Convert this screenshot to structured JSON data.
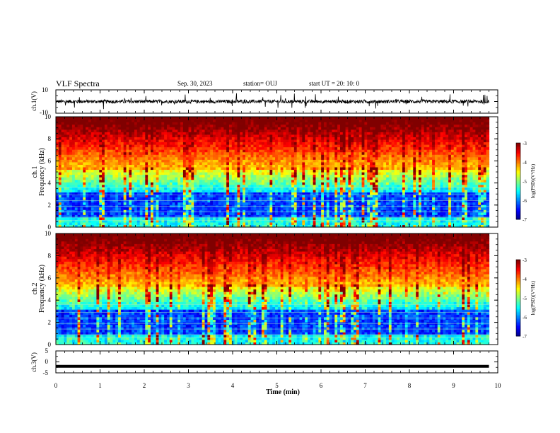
{
  "header": {
    "title": "VLF Spectra",
    "date": "Sep. 30, 2023",
    "station": "station= OUJ",
    "start": "start UT =   20: 10: 0"
  },
  "colors": {
    "spectrum_low": "#000080",
    "spectrum_mid": "#00ff00",
    "spectrum_high": "#ff0000",
    "trace": "#000000"
  },
  "chart_data": [
    {
      "type": "line",
      "panel": "waveform-ch1",
      "ylabel": "ch.1(V)",
      "ylim": [
        -10,
        10
      ],
      "yticks": [
        "10",
        "-10"
      ],
      "xlim": [
        0,
        10
      ],
      "baseline": 0,
      "noise_amplitude": 1.5,
      "spike_amplitude": 6
    },
    {
      "type": "heatmap",
      "panel": "spectrogram-ch1",
      "ylabel_line1": "ch.1",
      "ylabel_line2": "Frequency (kHz)",
      "ylim": [
        0,
        10
      ],
      "yticks": [
        "0",
        "2",
        "4",
        "6",
        "8",
        "10"
      ],
      "xlim": [
        0,
        10
      ],
      "data_end_min": 9.8,
      "colorbar": {
        "label": "log(PSD)(V²/Hz)",
        "range": [
          -7,
          -3
        ],
        "ticks": [
          "-3",
          "-4",
          "-5",
          "-6",
          "-7"
        ]
      }
    },
    {
      "type": "heatmap",
      "panel": "spectrogram-ch2",
      "ylabel_line1": "ch.2",
      "ylabel_line2": "Frequency (kHz)",
      "ylim": [
        0,
        10
      ],
      "yticks": [
        "0",
        "2",
        "4",
        "6",
        "8",
        "10"
      ],
      "xlim": [
        0,
        10
      ],
      "data_end_min": 9.8,
      "colorbar": {
        "label": "log(PSD)(V²/Hz)",
        "range": [
          -7,
          -3
        ],
        "ticks": [
          "-3",
          "-4",
          "-5",
          "-6",
          "-7"
        ]
      }
    },
    {
      "type": "line",
      "panel": "waveform-ch3",
      "ylabel": "ch.3(V)",
      "ylim": [
        -5,
        5
      ],
      "yticks": [
        "5",
        "0",
        "-5"
      ],
      "xlim": [
        0,
        10
      ],
      "baseline": -2
    }
  ],
  "xaxis": {
    "label": "Time (min)",
    "ticks": [
      "0",
      "1",
      "2",
      "3",
      "4",
      "5",
      "6",
      "7",
      "8",
      "9",
      "10"
    ]
  }
}
